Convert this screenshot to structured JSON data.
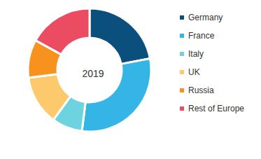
{
  "chart_data": {
    "type": "pie",
    "title": "2019",
    "categories": [
      "Germany",
      "France",
      "Italy",
      "UK",
      "Russia",
      "Rest of Europe"
    ],
    "values": [
      22,
      30,
      8,
      13,
      10,
      17
    ],
    "colors": [
      "#0b4f7c",
      "#35b4e6",
      "#6dd3de",
      "#fcca6c",
      "#f7921e",
      "#ec4c62"
    ],
    "legend": "right"
  }
}
